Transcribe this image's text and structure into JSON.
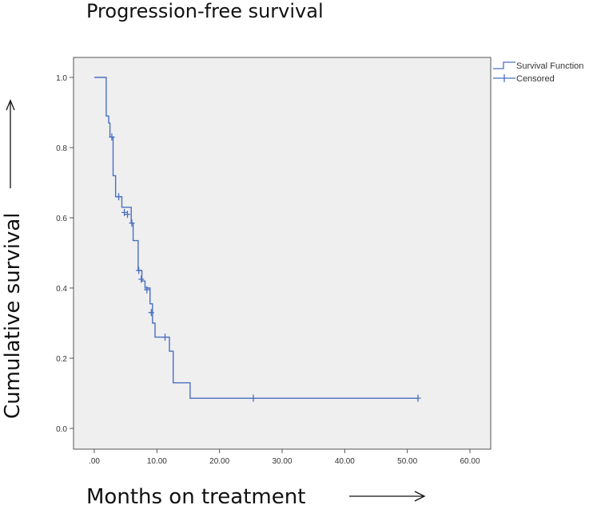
{
  "chart_data": {
    "type": "line",
    "title": "Progression-free survival",
    "xlabel": "Months on treatment",
    "ylabel": "Cumulative survival",
    "xlim": [
      0,
      60
    ],
    "ylim": [
      0,
      1
    ],
    "x_ticks": [
      0,
      10,
      20,
      30,
      40,
      50,
      60
    ],
    "x_tick_labels": [
      ".00",
      "10.00",
      "20.00",
      "30.00",
      "40.00",
      "50.00",
      "60.00"
    ],
    "y_ticks": [
      0,
      0.2,
      0.4,
      0.6,
      0.8,
      1.0
    ],
    "y_tick_labels": [
      "0.0",
      "0.2",
      "0.4",
      "0.6",
      "0.8",
      "1.0"
    ],
    "legend": [
      "Survival Function",
      "Censored"
    ],
    "legend_position": "outside-top-right",
    "series": [
      {
        "name": "Survival Function",
        "style": "step",
        "color": "#4a6fc0",
        "points": [
          {
            "x": 0,
            "y": 1.0
          },
          {
            "x": 1.9,
            "y": 0.89
          },
          {
            "x": 2.3,
            "y": 0.87
          },
          {
            "x": 2.5,
            "y": 0.83
          },
          {
            "x": 3.0,
            "y": 0.72
          },
          {
            "x": 3.4,
            "y": 0.66
          },
          {
            "x": 4.4,
            "y": 0.63
          },
          {
            "x": 5.9,
            "y": 0.585
          },
          {
            "x": 6.2,
            "y": 0.535
          },
          {
            "x": 7.0,
            "y": 0.45
          },
          {
            "x": 7.6,
            "y": 0.42
          },
          {
            "x": 8.1,
            "y": 0.4
          },
          {
            "x": 8.9,
            "y": 0.355
          },
          {
            "x": 9.3,
            "y": 0.3
          },
          {
            "x": 9.7,
            "y": 0.26
          },
          {
            "x": 12.0,
            "y": 0.22
          },
          {
            "x": 12.6,
            "y": 0.13
          },
          {
            "x": 15.3,
            "y": 0.086
          }
        ],
        "x_end": 51.7
      },
      {
        "name": "Censored",
        "style": "marker-plus",
        "color": "#4a6fc0",
        "points": [
          {
            "x": 2.8,
            "y": 0.83
          },
          {
            "x": 3.9,
            "y": 0.66
          },
          {
            "x": 4.8,
            "y": 0.615
          },
          {
            "x": 5.3,
            "y": 0.61
          },
          {
            "x": 6.0,
            "y": 0.585
          },
          {
            "x": 7.1,
            "y": 0.45
          },
          {
            "x": 7.5,
            "y": 0.425
          },
          {
            "x": 8.4,
            "y": 0.395
          },
          {
            "x": 9.1,
            "y": 0.33
          },
          {
            "x": 11.3,
            "y": 0.26
          },
          {
            "x": 25.4,
            "y": 0.086
          },
          {
            "x": 51.7,
            "y": 0.086
          }
        ]
      }
    ]
  }
}
